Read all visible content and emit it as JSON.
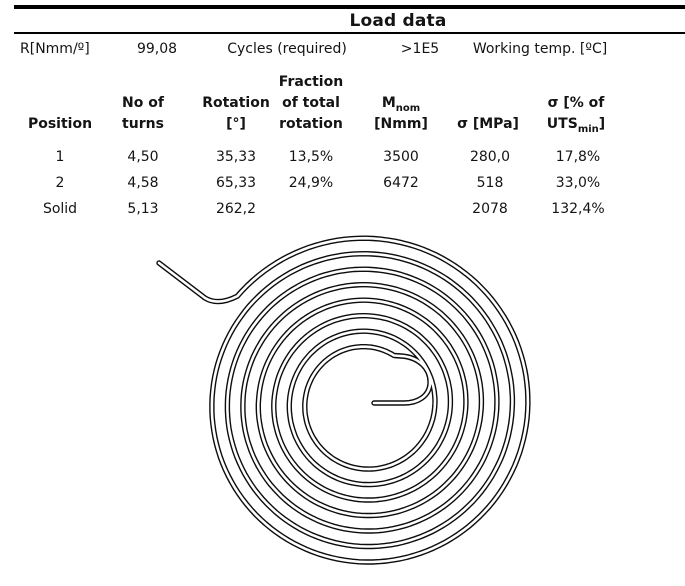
{
  "title": "Load data",
  "params_row": {
    "r_label": "R[Nmm/º]",
    "r_value": "99,08",
    "cycles_label": "Cycles (required)",
    "cycles_value": ">1E5",
    "temp_label": "Working temp. [ºC]"
  },
  "table": {
    "headers": {
      "position": {
        "l1": "Position"
      },
      "turns": {
        "l1": "No of",
        "l2": "turns"
      },
      "rotation": {
        "l1": "Rotation",
        "l2": "[°]"
      },
      "fraction": {
        "l1": "Fraction",
        "l2": "of total",
        "l3": "rotation"
      },
      "mnom": {
        "main": "M",
        "sub": "nom",
        "l2": "[Nmm]"
      },
      "sigma_mpa": {
        "l1": "σ [MPa]"
      },
      "sigma_uts": {
        "l1": "σ [% of",
        "main": "UTS",
        "sub": "min",
        "post": "]"
      }
    },
    "rows": [
      {
        "position": "1",
        "turns": "4,50",
        "rotation": "35,33",
        "fraction": "13,5%",
        "mnom": "3500",
        "sigma_mpa": "280,0",
        "sigma_uts": "17,8%"
      },
      {
        "position": "2",
        "turns": "4,58",
        "rotation": "65,33",
        "fraction": "24,9%",
        "mnom": "6472",
        "sigma_mpa": "518",
        "sigma_uts": "33,0%"
      },
      {
        "position": "Solid",
        "turns": "5,13",
        "rotation": "262,2",
        "fraction": "",
        "mnom": "",
        "sigma_mpa": "2078",
        "sigma_uts": "132,4%"
      }
    ]
  },
  "drawing": {
    "name": "spiral torsion spring outline",
    "stroke_color": "#0d0d0d",
    "core_color": "#ffffff"
  }
}
